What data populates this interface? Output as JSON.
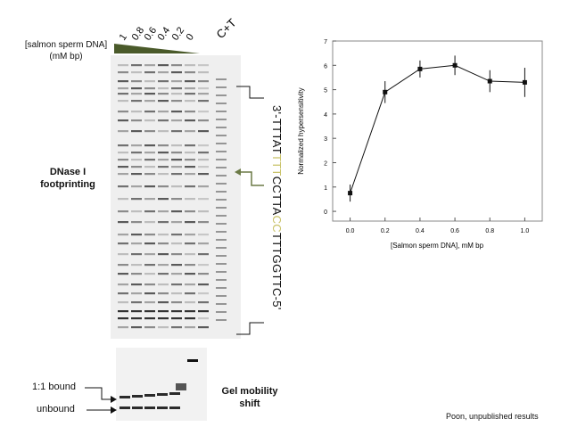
{
  "gel_label": {
    "line1": "[salmon sperm DNA]",
    "line2": "(mM bp)"
  },
  "lane_concentrations": [
    "1",
    "0.8",
    "0.6",
    "0.4",
    "0.2",
    "0"
  ],
  "ct_lane": "C+T",
  "footprint_title": {
    "line1": "DNase I",
    "line2": "footprinting"
  },
  "sequence": {
    "prefix": "3'-TTTAT",
    "highlight1": "TTT",
    "middle": "CCTTA",
    "highlight2": "CC",
    "suffix": "TTTGGTTC-5'",
    "colors": {
      "base": "#111111",
      "highlight": "#c9c36a"
    }
  },
  "shift_title": {
    "line1": "Gel mobility",
    "line2": "shift"
  },
  "bound_label": "1:1 bound",
  "unbound_label": "unbound",
  "credit": "Poon, unpublished results",
  "colors": {
    "triangle": "#4a5a2a",
    "arrow_footprint": "#6b7a46"
  },
  "chart_data": {
    "type": "line",
    "x": [
      0.0,
      0.2,
      0.4,
      0.6,
      0.8,
      1.0
    ],
    "y": [
      0.75,
      4.9,
      5.85,
      6.0,
      5.35,
      5.3
    ],
    "yerr": [
      0.35,
      0.45,
      0.35,
      0.4,
      0.45,
      0.6
    ],
    "xlabel": "[Salmon sperm DNA], mM bp",
    "ylabel": "Normalized hypersensitivity",
    "xlim": [
      -0.1,
      1.1
    ],
    "ylim": [
      -0.4,
      7
    ],
    "xticks": [
      "0.0",
      "0.2",
      "0.4",
      "0.6",
      "0.8",
      "1.0"
    ],
    "yticks": [
      "0",
      "1",
      "2",
      "3",
      "4",
      "5",
      "6",
      "7"
    ],
    "grid": false,
    "marker": "square"
  }
}
